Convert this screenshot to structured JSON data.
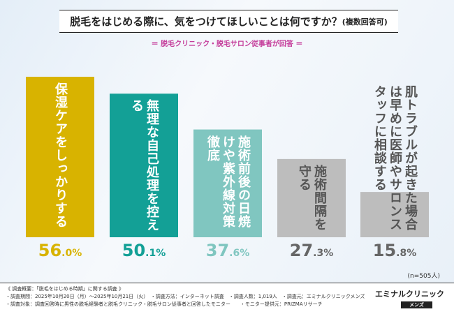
{
  "title": "脱毛をはじめる際に、気をつけてほしいことは何ですか？",
  "title_note": "(複数回答可)",
  "subtitle": "＝ 脱毛クリニック・脱毛サロン従事者が回答 ＝",
  "chart_data": {
    "type": "bar",
    "categories": [
      "保湿ケアをしっかりする",
      "無理な自己処理を控える",
      "施術前後の日焼けや紫外線対策徹底",
      "施術間隔を守る",
      "肌トラブルが起きた場合は早めに医師やサロンスタッフに相談する"
    ],
    "values": [
      56.0,
      50.1,
      37.6,
      27.3,
      15.8
    ],
    "value_labels": [
      [
        "56",
        ".0%"
      ],
      [
        "50",
        ".1%"
      ],
      [
        "37",
        ".6%"
      ],
      [
        "27",
        ".3%"
      ],
      [
        "15",
        ".8%"
      ]
    ],
    "colors": [
      "#d8b300",
      "#13a096",
      "#80c6c0",
      "#bdbdbd",
      "#bdbdbd"
    ],
    "label_colors": [
      "#ffffff",
      "#ffffff",
      "#ffffff",
      "#555555",
      "#555555"
    ],
    "value_colors": [
      "#d8b300",
      "#13a096",
      "#80c6c0",
      "#666666",
      "#666666"
    ],
    "ylim": [
      0,
      60
    ]
  },
  "n_label": "(n=505人)",
  "footer": {
    "line1": "《 調査概要：「脱毛をはじめる時期」に関する調査 》",
    "line2": "・調査期間：2025年10月20日（月）～2025年10月21日（火）　・調査方法：インターネット調査　・調査人数：1,019人　・調査元：エミナルクリニックメンズ",
    "line3": "・調査対象：調査回答時に男性の脱毛経験者と脱毛クリニック・脱毛サロン従事者と回答したモニター　　・モニター提供元：PRIZMAリサーチ"
  },
  "logo": {
    "name": "エミナルクリニック",
    "sub": "メンズ"
  }
}
